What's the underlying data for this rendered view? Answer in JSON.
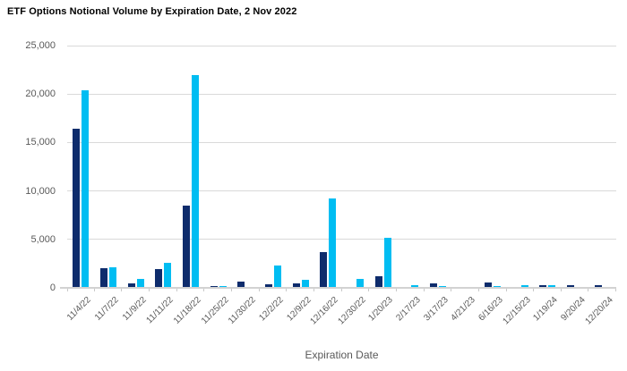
{
  "title": "ETF Options Notional Volume by Expiration Date, 2 Nov 2022",
  "colors": {
    "series_navy": "#0e2c6c",
    "series_cyan": "#00bdf2",
    "gridline": "#d9d9d9",
    "axis_line": "#d2d2d2",
    "tick": "#c9c9c9",
    "label_text": "#595959",
    "title_text": "#000000"
  },
  "chart_data": {
    "type": "bar",
    "title": "ETF Options Notional Volume by Expiration Date, 2 Nov 2022",
    "xlabel": "Expiration Date",
    "ylabel": "",
    "legend_position": "none",
    "grid": "horizontal",
    "y_axis": {
      "min": 0,
      "max": 25000,
      "tick_values": [
        0,
        5000,
        10000,
        15000,
        20000,
        25000
      ],
      "tick_labels": [
        "0",
        "5,000",
        "10,000",
        "15,000",
        "20,000",
        "25,000"
      ]
    },
    "categories": [
      "11/4/22",
      "11/7/22",
      "11/9/22",
      "11/11/22",
      "11/18/22",
      "11/25/22",
      "11/30/22",
      "12/2/22",
      "12/9/22",
      "12/16/22",
      "12/30/22",
      "1/20/23",
      "2/17/23",
      "3/17/23",
      "4/21/23",
      "6/16/23",
      "12/15/23",
      "1/19/24",
      "9/20/24",
      "12/20/24"
    ],
    "series": [
      {
        "name": "navy",
        "color": "#0e2c6c",
        "values": [
          16400,
          2000,
          450,
          1900,
          8500,
          180,
          600,
          400,
          480,
          3650,
          0,
          1230,
          0,
          490,
          0,
          550,
          0,
          300,
          250,
          250
        ]
      },
      {
        "name": "cyan",
        "color": "#00bdf2",
        "values": [
          20400,
          2100,
          900,
          2550,
          22000,
          200,
          0,
          2300,
          800,
          9200,
          950,
          5200,
          280,
          200,
          0,
          150,
          250,
          300,
          0,
          0
        ]
      }
    ]
  }
}
